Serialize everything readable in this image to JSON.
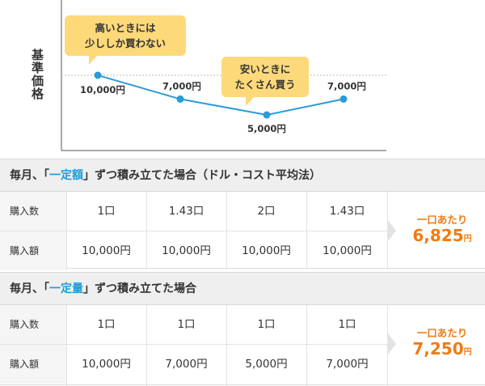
{
  "chart_data": {
    "type": "line",
    "ylabel": "基準価格",
    "xlabel": "",
    "title": "",
    "points": [
      {
        "y": 10000,
        "label": "10,000円"
      },
      {
        "y": 7000,
        "label": "7,000円"
      },
      {
        "y": 5000,
        "label": "5,000円"
      },
      {
        "y": 7000,
        "label": "7,000円"
      }
    ],
    "annotations": [
      {
        "text_lines": [
          "高いときには",
          "少ししか買わない"
        ]
      },
      {
        "text_lines": [
          "安いときに",
          "たくさん買う"
        ]
      }
    ],
    "colors": {
      "line": "#2a9bd8",
      "bubble": "#fdd97a"
    }
  },
  "tables": [
    {
      "title_prefix": "毎月、「",
      "title_highlight": "一定額",
      "title_suffix": "」ずつ積み立てた場合（ドル・コスト平均法）",
      "rows": [
        {
          "label": "購入数",
          "cells": [
            "1口",
            "1.43口",
            "2口",
            "1.43口"
          ]
        },
        {
          "label": "購入額",
          "cells": [
            "10,000円",
            "10,000円",
            "10,000円",
            "10,000円"
          ]
        }
      ],
      "result_caption": "一口あたり",
      "result_value": "6,825",
      "result_unit": "円"
    },
    {
      "title_prefix": "毎月、「",
      "title_highlight": "一定量",
      "title_suffix": "」ずつ積み立てた場合",
      "rows": [
        {
          "label": "購入数",
          "cells": [
            "1口",
            "1口",
            "1口",
            "1口"
          ]
        },
        {
          "label": "購入額",
          "cells": [
            "10,000円",
            "7,000円",
            "5,000円",
            "7,000円"
          ]
        }
      ],
      "result_caption": "一口あたり",
      "result_value": "7,250",
      "result_unit": "円"
    }
  ],
  "colors": {
    "highlight": "#1e9bd7",
    "result": "#f07b12",
    "header_bg": "#efefef"
  }
}
